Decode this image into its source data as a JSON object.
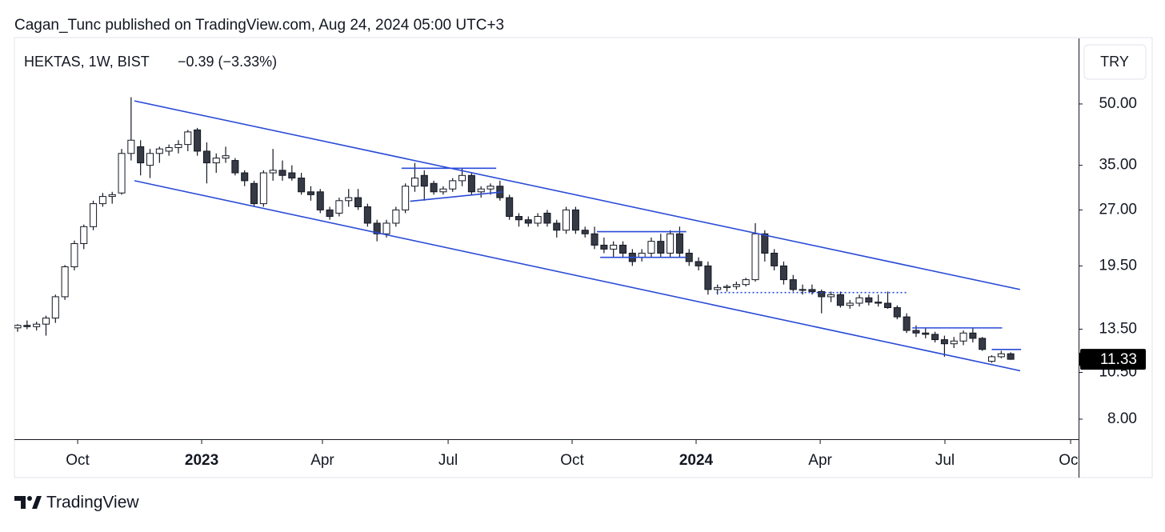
{
  "header": "Cagan_Tunc published on TradingView.com, Aug 24, 2024 05:00 UTC+3",
  "footer": "TradingView",
  "chart_data": {
    "type": "candlestick",
    "symbol": "HEKTAS, 1W, BIST",
    "change": "−0.39 (−3.33%)",
    "currency": "TRY",
    "last_price": 11.33,
    "log_scale": true,
    "up_color": "#ffffff",
    "down_color": "#363a45",
    "line_color": "#2a4bd7",
    "xlim": [
      -0.34,
      112.18
    ],
    "xticks": [
      {
        "value": 6.35,
        "label": "Oct"
      },
      {
        "value": 19.46,
        "label": "2023"
      },
      {
        "value": 32.23,
        "label": "Apr"
      },
      {
        "value": 45.52,
        "label": "Jul"
      },
      {
        "value": 58.63,
        "label": "Oct"
      },
      {
        "value": 71.74,
        "label": "2024"
      },
      {
        "value": 84.86,
        "label": "Apr"
      },
      {
        "value": 98.05,
        "label": "Jul"
      },
      {
        "value": 111.34,
        "label": "Oct"
      }
    ],
    "ylim": [
      7.12,
      73.2
    ],
    "yticks": [
      {
        "value": 8,
        "label": "8.00"
      },
      {
        "value": 10.5,
        "label": "10.50"
      },
      {
        "value": 13.5,
        "label": "13.50"
      },
      {
        "value": 19.5,
        "label": "19.50"
      },
      {
        "value": 27,
        "label": "27.00"
      },
      {
        "value": 35,
        "label": "35.00"
      },
      {
        "value": 50,
        "label": "50.00"
      }
    ],
    "open": [
      13.6,
      13.8,
      13.7,
      13.9,
      14.4,
      16.3,
      19.4,
      22.2,
      24.5,
      28,
      29.2,
      29.8,
      37.5,
      39,
      35,
      37.5,
      38,
      38.8,
      39.5,
      43,
      38,
      35.5,
      36.5,
      36,
      33.5,
      31.5,
      28,
      33.5,
      34,
      33.5,
      32.5,
      30,
      30,
      27,
      26.5,
      28.5,
      29,
      27.5,
      25,
      23.5,
      25,
      27,
      31,
      33,
      31.5,
      30,
      30.5,
      32,
      33,
      30,
      30.5,
      31,
      29,
      26,
      25.5,
      25,
      26.5,
      25,
      24,
      27,
      24,
      23.5,
      22,
      21.5,
      22,
      21,
      20.5,
      21,
      22.5,
      21,
      23.5,
      21,
      20,
      19.5,
      17,
      17.2,
      17.3,
      17.5,
      18,
      23.5,
      21,
      19.5,
      18,
      17,
      17,
      16.8,
      16.3,
      16.5,
      15.5,
      15.7,
      16.2,
      15.8,
      15.7,
      15.3,
      14.5,
      13.4,
      13.2,
      13.1,
      12.7,
      12.4,
      12.6,
      13.2,
      12.8,
      11.2,
      11.5,
      11.7
    ],
    "high": [
      13.9,
      14.2,
      14.1,
      14.6,
      16.5,
      19.6,
      22.6,
      24.8,
      28.5,
      29.8,
      30,
      38.5,
      52,
      40.5,
      38.5,
      39,
      39.5,
      40.5,
      43,
      43.5,
      40,
      37.5,
      39,
      36.5,
      34,
      32,
      34,
      38.5,
      36,
      35,
      33.5,
      31,
      30.5,
      27.5,
      29,
      30.5,
      30.5,
      28,
      25.5,
      25.5,
      27.5,
      31.5,
      35.5,
      34,
      32,
      31,
      32.5,
      34.5,
      33.5,
      31,
      31.5,
      32,
      29.5,
      26.5,
      26,
      26.5,
      27,
      25.5,
      27.5,
      27.5,
      24.5,
      24.5,
      23,
      22.5,
      22.5,
      21.5,
      21.5,
      23,
      23.5,
      24,
      24.5,
      21.5,
      20.5,
      20,
      17.5,
      17.5,
      17.8,
      18.2,
      25,
      24,
      21.5,
      20,
      18.5,
      17.5,
      17.5,
      17,
      16.8,
      16.8,
      16,
      16.5,
      16.5,
      16.5,
      16.8,
      15.5,
      14.8,
      13.8,
      13.6,
      13.3,
      13,
      12.9,
      13.4,
      13.6,
      12.9,
      11.6,
      11.9,
      11.8
    ],
    "low": [
      13.3,
      13.5,
      13.4,
      13,
      14,
      16,
      19,
      21.5,
      24,
      27.5,
      28,
      29.5,
      36,
      33,
      32.5,
      35.5,
      37,
      37.5,
      38,
      37,
      31.5,
      33.5,
      35.5,
      33,
      31,
      27.5,
      27.5,
      32,
      32,
      32,
      29.5,
      28.5,
      26.5,
      25.5,
      26,
      27.5,
      27,
      24.5,
      22.5,
      23,
      24.5,
      26.5,
      30,
      28.5,
      29.5,
      29.5,
      30,
      31,
      29.5,
      29,
      29.5,
      28.5,
      25.5,
      24.5,
      24.5,
      24.5,
      24.5,
      23,
      23.5,
      23.5,
      23,
      21.5,
      21,
      20.5,
      20.5,
      19.5,
      20,
      20.5,
      20.5,
      20.5,
      20.5,
      19.5,
      19,
      16.5,
      16.5,
      16.8,
      17,
      17.3,
      17.8,
      20,
      19,
      17.5,
      16.8,
      16.5,
      16.5,
      14.8,
      15.8,
      15.3,
      15.2,
      15.4,
      15.5,
      15.4,
      15.2,
      14.3,
      13.2,
      12.9,
      12.8,
      12.5,
      11.5,
      12.1,
      12.3,
      12.5,
      11.9,
      11.1,
      11.4,
      11.3
    ],
    "close": [
      13.8,
      13.7,
      13.9,
      14.4,
      16.3,
      19.4,
      22.2,
      24.5,
      28,
      29.2,
      29.5,
      37.5,
      40.5,
      35.5,
      37.5,
      38.5,
      38.8,
      39.5,
      42.5,
      38,
      35.5,
      36.5,
      37,
      33.5,
      32,
      28,
      33.5,
      34,
      33,
      32.5,
      30,
      29.5,
      27,
      26,
      28.5,
      29,
      27.5,
      25,
      23.5,
      25,
      27,
      31,
      32.5,
      31,
      30,
      30.5,
      32,
      33,
      30,
      30.5,
      31,
      29,
      26,
      25.5,
      25,
      26,
      25,
      24,
      27,
      24,
      23.5,
      22,
      21.5,
      22,
      21,
      20,
      21,
      22.5,
      21,
      23.5,
      21,
      20,
      19.5,
      17,
      17.2,
      17.3,
      17.5,
      18,
      23.5,
      21,
      19.5,
      18,
      17,
      17,
      16.8,
      16.3,
      16.5,
      15.5,
      15.7,
      16.2,
      15.8,
      15.7,
      15.3,
      14.5,
      13.4,
      13.2,
      13.1,
      12.7,
      12.4,
      12.6,
      13.2,
      12.8,
      12,
      11.5,
      11.7,
      11.33
    ],
    "lines": [
      {
        "x": [
          12.35,
          106.0
        ],
        "y": [
          50.9,
          17.0
        ],
        "style": "solid"
      },
      {
        "x": [
          12.35,
          106.0
        ],
        "y": [
          32.0,
          10.6
        ],
        "style": "solid"
      },
      {
        "x": [
          40.6,
          50.6
        ],
        "y": [
          34.4,
          34.4
        ],
        "style": "solid"
      },
      {
        "x": [
          41.5,
          51.3
        ],
        "y": [
          28.4,
          30.0
        ],
        "style": "solid"
      },
      {
        "x": [
          61.25,
          70.7
        ],
        "y": [
          23.8,
          23.8
        ],
        "style": "solid"
      },
      {
        "x": [
          61.6,
          70.7
        ],
        "y": [
          20.5,
          20.5
        ],
        "style": "solid"
      },
      {
        "x": [
          73.9,
          94.0
        ],
        "y": [
          16.7,
          16.7
        ],
        "style": "dotted"
      },
      {
        "x": [
          94.6,
          104.1
        ],
        "y": [
          13.6,
          13.6
        ],
        "style": "solid"
      },
      {
        "x": [
          103.0,
          106.1
        ],
        "y": [
          12.0,
          12.0
        ],
        "style": "solid"
      }
    ]
  }
}
